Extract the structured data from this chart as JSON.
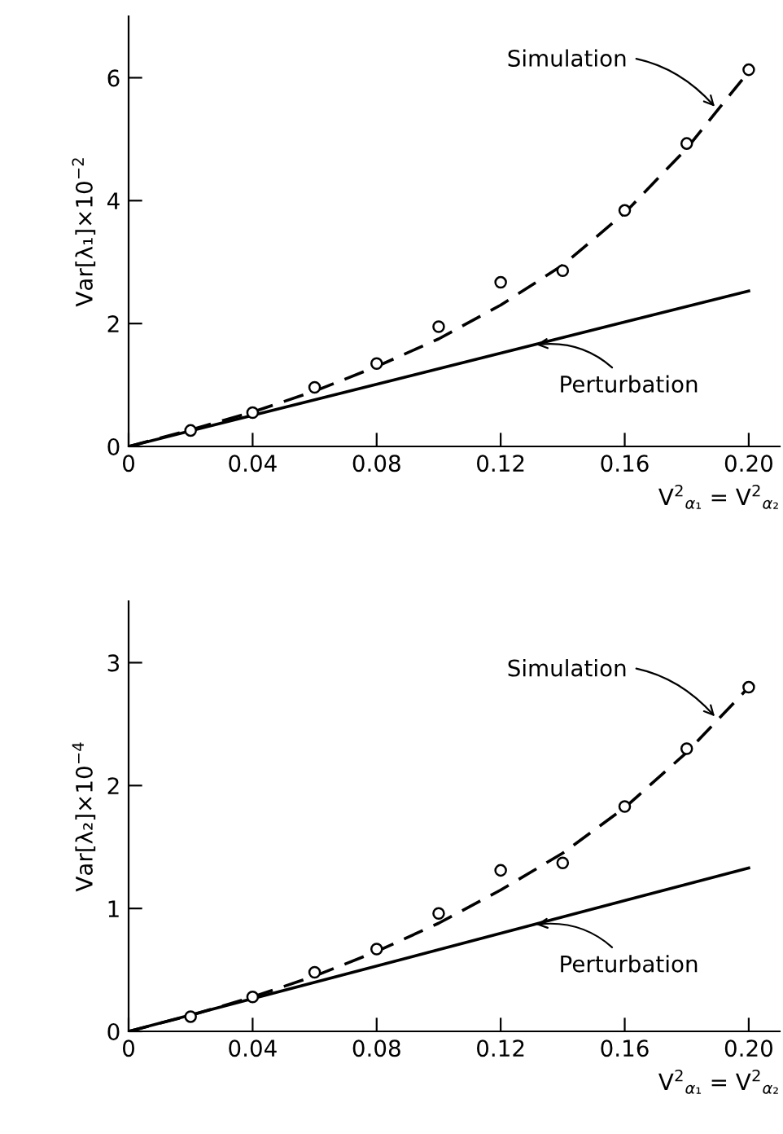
{
  "chart_data": [
    {
      "type": "line",
      "ylabel": "Var[λ₁]×10$^{−2}$",
      "xlabel": "V$^{2}$$_{α₁}$ = V$^{2}$$_{α₂}$",
      "xlim": [
        0,
        0.21
      ],
      "ylim": [
        0,
        7
      ],
      "xticks": [
        0,
        0.04,
        0.08,
        0.12,
        0.16,
        {
          "value": 0.2,
          "label": "0.20"
        }
      ],
      "yticks": [
        0,
        2,
        4,
        6
      ],
      "grid": false,
      "series": [
        {
          "type": "scatter",
          "marker": "circle",
          "color": "#000000",
          "x": [
            0.02,
            0.04,
            0.06,
            0.08,
            0.1,
            0.12,
            0.14,
            0.16,
            0.18,
            0.2
          ],
          "values": [
            0.26,
            0.55,
            0.96,
            1.35,
            1.95,
            2.67,
            2.86,
            3.84,
            4.93,
            6.13
          ]
        },
        {
          "name": "Simulation",
          "line_style": "dashed",
          "color": "#000000",
          "x": [
            0,
            0.02,
            0.04,
            0.06,
            0.08,
            0.1,
            0.12,
            0.14,
            0.16,
            0.18,
            0.2
          ],
          "values": [
            0,
            0.27,
            0.56,
            0.9,
            1.3,
            1.75,
            2.3,
            2.95,
            3.8,
            4.85,
            6.1
          ]
        },
        {
          "name": "Perturbation",
          "line_style": "solid",
          "color": "#000000",
          "x": [
            0,
            0.2
          ],
          "values": [
            0,
            2.53
          ]
        }
      ]
    },
    {
      "type": "line",
      "ylabel": "Var[λ₂]×10$^{−4}$",
      "xlabel": "V$^{2}$$_{α₁}$ = V$^{2}$$_{α₂}$",
      "xlim": [
        0,
        0.21
      ],
      "ylim": [
        0,
        3.5
      ],
      "xticks": [
        0,
        0.04,
        0.08,
        0.12,
        0.16,
        {
          "value": 0.2,
          "label": "0.20"
        }
      ],
      "yticks": [
        0,
        1,
        2,
        3
      ],
      "grid": false,
      "series": [
        {
          "type": "scatter",
          "marker": "circle",
          "color": "#000000",
          "x": [
            0.02,
            0.04,
            0.06,
            0.08,
            0.1,
            0.12,
            0.14,
            0.16,
            0.18,
            0.2
          ],
          "values": [
            0.12,
            0.28,
            0.48,
            0.67,
            0.96,
            1.31,
            1.37,
            1.83,
            2.3,
            2.8
          ]
        },
        {
          "name": "Simulation",
          "line_style": "dashed",
          "color": "#000000",
          "x": [
            0,
            0.02,
            0.04,
            0.06,
            0.08,
            0.1,
            0.12,
            0.14,
            0.16,
            0.18,
            0.2
          ],
          "values": [
            0,
            0.13,
            0.28,
            0.45,
            0.65,
            0.88,
            1.15,
            1.45,
            1.82,
            2.27,
            2.8
          ]
        },
        {
          "name": "Perturbation",
          "line_style": "solid",
          "color": "#000000",
          "x": [
            0,
            0.2
          ],
          "values": [
            0,
            1.33
          ]
        }
      ]
    }
  ]
}
